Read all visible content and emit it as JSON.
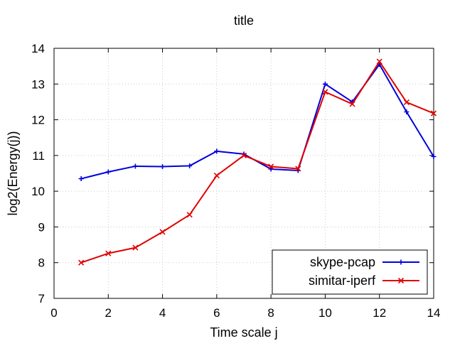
{
  "chart_data": {
    "type": "line",
    "title": "title",
    "xlabel": "Time scale j",
    "ylabel": "log2(Energy(j))",
    "xlim": [
      0,
      14
    ],
    "ylim": [
      7,
      14
    ],
    "xticks": [
      0,
      2,
      4,
      6,
      8,
      10,
      12,
      14
    ],
    "yticks": [
      7,
      8,
      9,
      10,
      11,
      12,
      13,
      14
    ],
    "grid": true,
    "legend_position": "bottom-right",
    "series": [
      {
        "name": "skype-pcap",
        "color": "#0000e0",
        "marker": "plus",
        "x": [
          1,
          2,
          3,
          4,
          5,
          6,
          7,
          8,
          9,
          10,
          11,
          12,
          13,
          14
        ],
        "y": [
          10.35,
          10.54,
          10.7,
          10.69,
          10.71,
          11.12,
          11.04,
          10.62,
          10.58,
          13.0,
          12.5,
          13.55,
          12.22,
          10.97
        ]
      },
      {
        "name": "simitar-iperf",
        "color": "#e00000",
        "marker": "cross",
        "x": [
          1,
          2,
          3,
          4,
          5,
          6,
          7,
          8,
          9,
          10,
          11,
          12,
          13,
          14
        ],
        "y": [
          8.0,
          8.26,
          8.42,
          8.86,
          9.34,
          10.44,
          11.0,
          10.69,
          10.63,
          12.78,
          12.44,
          13.63,
          12.49,
          12.18
        ]
      }
    ]
  }
}
